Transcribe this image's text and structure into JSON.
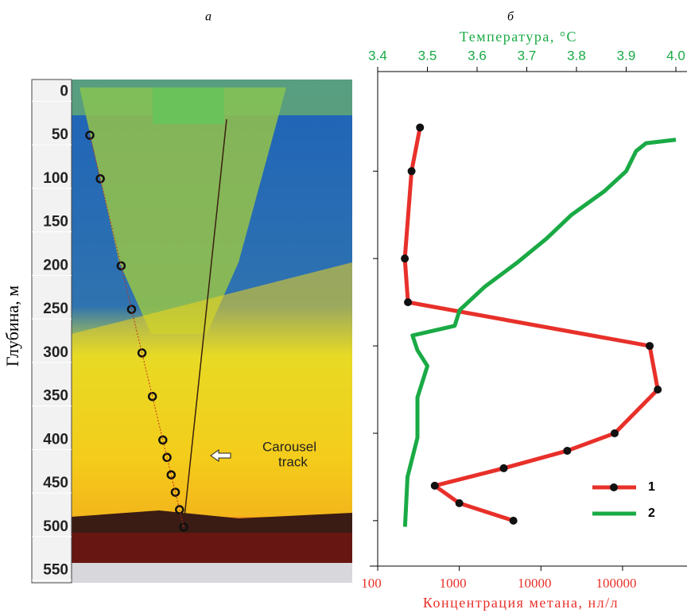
{
  "chart_data": [
    {
      "type": "echogram",
      "panel_label": "а",
      "ylabel": "Глубина, м",
      "ylim": [
        -14,
        564
      ],
      "yticks": [
        0,
        50,
        100,
        150,
        200,
        250,
        300,
        350,
        400,
        450,
        500,
        550
      ],
      "annotation": [
        "Carousel",
        "track"
      ]
    },
    {
      "type": "profile",
      "panel_label": "б",
      "xlabel": "Концентрация метана, нл/л",
      "x2label": "Температура, °C",
      "xscale": "log",
      "xlim": [
        100,
        450000
      ],
      "xticks": [
        100,
        1000,
        10000,
        100000
      ],
      "x2lim": [
        3.4,
        4.0
      ],
      "x2ticks": [
        3.4,
        3.5,
        3.6,
        3.7,
        3.8,
        3.9,
        {
          "value": 4.0,
          "label": "4.0"
        }
      ],
      "ylim": [
        -14,
        552
      ],
      "yticks": [
        100,
        200,
        300,
        400,
        500
      ],
      "series": [
        {
          "name": "1",
          "color": "#e8302a",
          "axis": "x",
          "depths": [
            50,
            100,
            200,
            250,
            300,
            350,
            400,
            420,
            440,
            460,
            480,
            500
          ],
          "values": [
            330,
            260,
            215,
            235,
            215000,
            270000,
            80000,
            21000,
            3500,
            500,
            1000,
            4600
          ]
        },
        {
          "name": "2",
          "color": "#1aaa45",
          "axis": "x2",
          "depths": [
            64,
            68,
            77,
            100,
            123,
            150,
            177,
            205,
            232,
            259,
            277,
            288,
            305,
            323,
            359,
            405,
            450,
            507
          ],
          "values": [
            4.0,
            3.94,
            3.92,
            3.9,
            3.856,
            3.79,
            3.74,
            3.68,
            3.616,
            3.565,
            3.555,
            3.47,
            3.48,
            3.5,
            3.48,
            3.48,
            3.46,
            3.455
          ]
        }
      ]
    }
  ]
}
